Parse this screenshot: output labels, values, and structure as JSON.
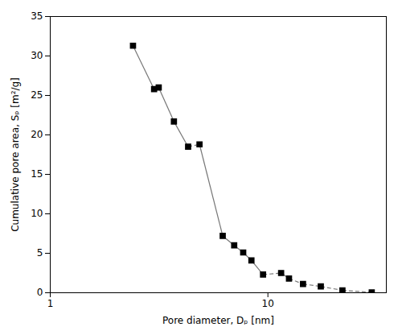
{
  "chart_data": {
    "type": "line",
    "xlabel": "Pore diameter, Dₚ [nm]",
    "ylabel": "Cumulative pore area, Sₚ [m²/g]",
    "x": [
      2.4,
      3.0,
      3.15,
      3.7,
      4.3,
      4.85,
      6.2,
      7.0,
      7.7,
      8.4,
      9.5,
      11.5,
      12.5,
      14.5,
      17.5,
      22.0,
      30.0
    ],
    "values": [
      31.3,
      25.8,
      26.0,
      21.7,
      18.5,
      18.8,
      7.2,
      6.0,
      5.1,
      4.1,
      2.3,
      2.5,
      1.8,
      1.1,
      0.8,
      0.3,
      0.05
    ],
    "color": "#777777",
    "marker": "square",
    "log": "x",
    "xlim": [
      1,
      35
    ],
    "xticks": [
      1,
      10
    ],
    "ylim": [
      0,
      35
    ],
    "yticks": [
      0,
      5,
      10,
      15,
      20,
      25,
      30,
      35
    ],
    "grid": false
  }
}
